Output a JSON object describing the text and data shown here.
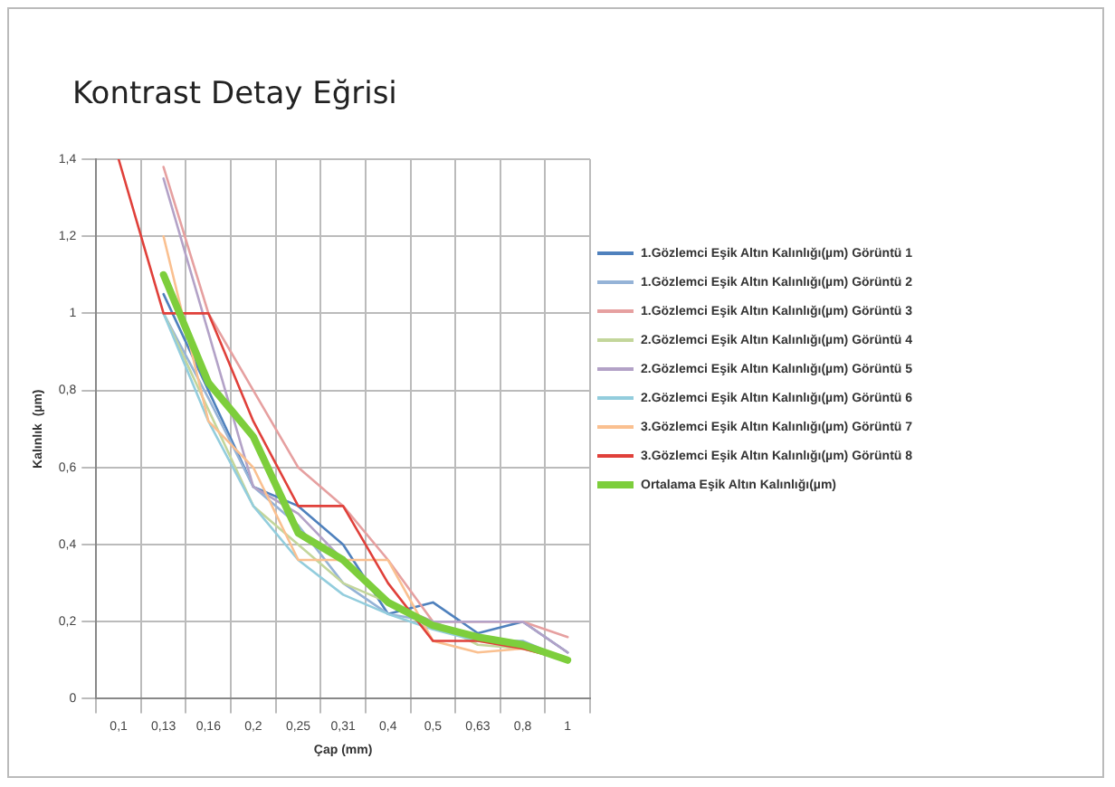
{
  "chart_data": {
    "type": "line",
    "title": "Kontrast Detay Eğrisi",
    "xlabel": "Çap (mm)",
    "ylabel": "Kalınlık  (µm)",
    "categories": [
      "0,1",
      "0,13",
      "0,16",
      "0,2",
      "0,25",
      "0,31",
      "0,4",
      "0,5",
      "0,63",
      "0,8",
      "1"
    ],
    "ylim": [
      0,
      1.4
    ],
    "yticks": [
      0,
      {
        "value": 0.2,
        "label": "0,2"
      },
      {
        "value": 0.4,
        "label": "0,4"
      },
      {
        "value": 0.6,
        "label": "0,6"
      },
      {
        "value": 0.8,
        "label": "0,8"
      },
      1,
      {
        "value": 1.2,
        "label": "1,2"
      },
      {
        "value": 1.4,
        "label": "1,4"
      }
    ],
    "grid": true,
    "legend": "right",
    "marker": "none",
    "line_style": "solid",
    "series": [
      {
        "name": "1.Gözlemci Eşik Altın Kalınlığı(µm) Görüntü 1",
        "color": "#4f81bd",
        "values": [
          null,
          1.05,
          0.8,
          0.55,
          0.5,
          0.4,
          0.22,
          0.25,
          0.17,
          0.2,
          0.12
        ]
      },
      {
        "name": "1.Gözlemci Eşik Altın Kalınlığı(µm) Görüntü 2",
        "color": "#95b3d7",
        "values": [
          null,
          1.0,
          0.78,
          0.55,
          0.45,
          0.3,
          0.22,
          0.2,
          0.15,
          0.15,
          0.1
        ]
      },
      {
        "name": "1.Gözlemci Eşik Altın Kalınlığı(µm) Görüntü 3",
        "color": "#e6a0a0",
        "values": [
          null,
          1.38,
          1.0,
          0.8,
          0.6,
          0.5,
          0.36,
          0.2,
          0.2,
          0.2,
          0.16
        ]
      },
      {
        "name": "2.Gözlemci Eşik Altın Kalınlığı(µm) Görüntü 4",
        "color": "#c3d69b",
        "values": [
          null,
          1.0,
          0.75,
          0.5,
          0.4,
          0.3,
          0.25,
          0.2,
          0.14,
          0.13,
          0.1
        ]
      },
      {
        "name": "2.Gözlemci Eşik Altın Kalınlığı(µm) Görüntü 5",
        "color": "#b3a2c7",
        "values": [
          null,
          1.35,
          0.95,
          0.55,
          0.48,
          0.36,
          0.25,
          0.2,
          0.2,
          0.2,
          0.12
        ]
      },
      {
        "name": "2.Gözlemci Eşik Altın Kalınlığı(µm) Görüntü 6",
        "color": "#93cddd",
        "values": [
          null,
          1.0,
          0.72,
          0.5,
          0.36,
          0.27,
          0.22,
          0.18,
          0.15,
          0.14,
          0.1
        ]
      },
      {
        "name": "3.Gözlemci Eşik Altın Kalınlığı(µm) Görüntü 7",
        "color": "#fac090",
        "values": [
          null,
          1.2,
          0.72,
          0.6,
          0.36,
          0.36,
          0.36,
          0.15,
          0.12,
          0.13,
          0.1
        ]
      },
      {
        "name": "3.Gözlemci Eşik Altın Kalınlığı(µm) Görüntü 8",
        "color": "#e0403a",
        "values": [
          1.4,
          1.0,
          1.0,
          0.72,
          0.5,
          0.5,
          0.3,
          0.15,
          0.15,
          0.13,
          0.1
        ]
      },
      {
        "name": "Ortalama Eşik Altın Kalınlığı(µm)",
        "color": "#7dce3c",
        "values": [
          null,
          1.1,
          0.82,
          0.68,
          0.43,
          0.36,
          0.25,
          0.19,
          0.16,
          0.14,
          0.1
        ]
      }
    ]
  }
}
